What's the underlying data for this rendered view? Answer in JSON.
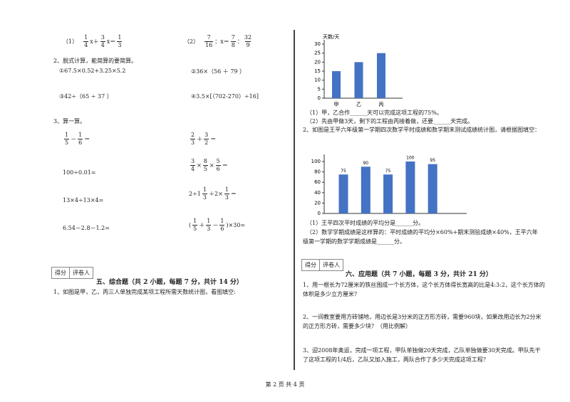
{
  "equations": [
    {
      "label": "（1）",
      "tokens": [
        {
          "num": "1",
          "den": "4"
        },
        "x＋",
        {
          "num": "3",
          "den": "4"
        },
        "x＝",
        {
          "num": "1",
          "den": "3"
        }
      ]
    },
    {
      "label": "（2）",
      "tokens": [
        {
          "num": "7",
          "den": "16"
        },
        "：x＝",
        {
          "num": "7",
          "den": "8"
        },
        "：",
        {
          "num": "32",
          "den": "9"
        }
      ]
    }
  ],
  "q2": {
    "title": "2、脱式计算，能简算的要简算。",
    "items": [
      "①67.5×0.52+3.25×5.2",
      "②36×（56 ＋ 79 ）",
      "③42÷（65 ÷ 37 ）",
      "④3.5×[（702-270）÷16]"
    ]
  },
  "q3": {
    "title": "3、算一算。",
    "left": [
      [
        {
          "num": "1",
          "den": "5"
        },
        "－",
        {
          "num": "1",
          "den": "6"
        },
        "＝"
      ],
      [
        "100÷0.01="
      ],
      [
        "13×4÷13×4="
      ],
      [
        "6.54－2.8－1.2="
      ]
    ],
    "right": [
      [
        {
          "num": "2",
          "den": "3"
        },
        "＋",
        {
          "num": "3",
          "den": "2"
        },
        "＝"
      ],
      [
        {
          "num": "3",
          "den": "4"
        },
        "×",
        {
          "num": "8",
          "den": "5"
        },
        "×",
        {
          "num": "5",
          "den": "6"
        },
        "＝"
      ],
      [
        "2÷1",
        {
          "num": "1",
          "den": "3"
        },
        "＋2×",
        {
          "num": "1",
          "den": "3"
        },
        "＝"
      ],
      [
        "(",
        {
          "num": "1",
          "den": "5"
        },
        "＋",
        {
          "num": "1",
          "den": "3"
        },
        "－",
        {
          "num": "1",
          "den": "6"
        },
        ")×30="
      ]
    ]
  },
  "section5": {
    "score_box": [
      "得分",
      "评卷人"
    ],
    "title": "五、综合题（共 2 小题，每题 7 分，共计 14 分）",
    "q1": "1、如图是甲，乙，丙三人单独完成某项工程所需天数统计图，看图填空:"
  },
  "chart1": {
    "type": "bar",
    "y_label": "天数/天",
    "categories": [
      "甲",
      "乙",
      "丙"
    ],
    "values": [
      15,
      20,
      25
    ],
    "color": "#4472c4",
    "ylim": [
      0,
      30
    ],
    "yticks": [
      0,
      5,
      10,
      15,
      20,
      25,
      30
    ]
  },
  "chart1_questions": [
    "（1）甲，乙合作______天可以完成这项工程的75%。",
    "（2）先由甲做3天，剩下的工程由丙接着做，还要______天完成。"
  ],
  "q2_right": "2、如图是王平六年级第一学期四次数学平时成绩和数学期末测试成绩统计图，请根据图填空：",
  "chart2": {
    "type": "bar",
    "values": [
      75,
      90,
      75,
      100,
      95
    ],
    "color": "#4472c4",
    "ylim": [
      0,
      100
    ],
    "yticks": [
      0,
      20,
      40,
      60,
      80,
      100
    ]
  },
  "chart2_questions": [
    "（1）王平四次平时成绩的平均分是______分。",
    "（2）数学学期成绩是这样算的：平时成绩的平均分×60%+期末测验成绩×40%，王平六年级第一学期的数学学期成绩是______分。"
  ],
  "section6": {
    "score_box": [
      "得分",
      "评卷人"
    ],
    "title": "六、应用题（共 7 小题，每题 3 分，共计 21 分）",
    "questions": [
      "1、用一根长为72厘米的铁丝围成一个长方体，这个长方体得长宽高的比是4:3:2，这个长方体的体积是多少立方厘米？",
      "2、一间教室要用方砖铺地，用边长是3分米的正方形方砖，需要960块，如果改用边长为2分米的正方形方砖，需要多少块？（用比例解）",
      "3、迎2008年奥运，完成一项工程，甲队单独做20天完成，乙队单独做要30天完成。甲队先干了这项工程的1/4后，乙队又加入施工，两队合作了多少天完成这项工程？"
    ]
  },
  "footer": "第 2 页 共 4 页"
}
